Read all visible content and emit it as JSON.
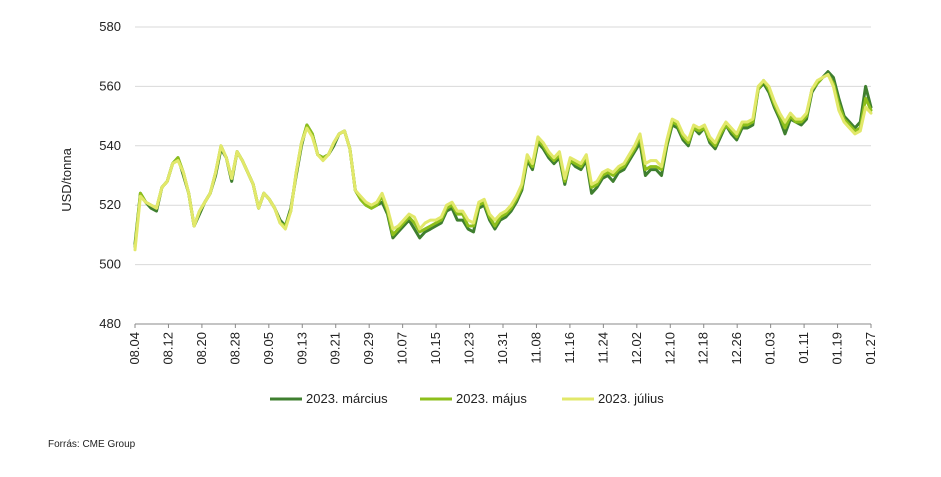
{
  "source": "Forrás: CME Group",
  "chart_data": {
    "type": "line",
    "title": "",
    "xlabel": "",
    "ylabel": "USD/tonna",
    "ylim": [
      480,
      580
    ],
    "yticks": [
      480,
      500,
      520,
      540,
      560,
      580
    ],
    "grid": true,
    "legend_position": "bottom",
    "x_tick_labels": [
      "08.04",
      "08.12",
      "08.20",
      "08.28",
      "09.05",
      "09.13",
      "09.21",
      "09.29",
      "10.07",
      "10.15",
      "10.23",
      "10.31",
      "11.08",
      "11.16",
      "11.24",
      "12.02",
      "12.10",
      "12.18",
      "12.26",
      "01.03",
      "01.11",
      "01.19",
      "01.27"
    ],
    "series": [
      {
        "name": "2023. március",
        "color": "#3f7f2f",
        "values": [
          507,
          524,
          521,
          519,
          518,
          526,
          528,
          534,
          536,
          530,
          524,
          513,
          517,
          521,
          524,
          530,
          539,
          536,
          528,
          538,
          535,
          531,
          527,
          519,
          524,
          522,
          519,
          515,
          513,
          519,
          530,
          540,
          547,
          544,
          537,
          536,
          537,
          540,
          544,
          545,
          539,
          525,
          522,
          520,
          519,
          520,
          521,
          517,
          509,
          511,
          513,
          515,
          512,
          509,
          511,
          512,
          513,
          514,
          518,
          519,
          515,
          515,
          512,
          511,
          519,
          520,
          515,
          512,
          515,
          516,
          518,
          521,
          525,
          535,
          532,
          541,
          539,
          536,
          534,
          536,
          527,
          535,
          533,
          532,
          535,
          524,
          526,
          529,
          530,
          528,
          531,
          532,
          535,
          538,
          541,
          530,
          532,
          532,
          530,
          540,
          547,
          546,
          542,
          540,
          546,
          544,
          546,
          541,
          539,
          543,
          547,
          544,
          542,
          546,
          546,
          547,
          559,
          561,
          558,
          553,
          549,
          544,
          549,
          548,
          547,
          549,
          558,
          561,
          563,
          565,
          563,
          556,
          550,
          548,
          546,
          548,
          560,
          553
        ]
      },
      {
        "name": "2023. május",
        "color": "#8dbf1b",
        "values": [
          506,
          524,
          521,
          520,
          519,
          526,
          528,
          534,
          536,
          531,
          524,
          513,
          518,
          521,
          524,
          531,
          540,
          536,
          529,
          538,
          535,
          531,
          527,
          519,
          524,
          522,
          519,
          514,
          513,
          518,
          531,
          541,
          547,
          544,
          537,
          536,
          537,
          541,
          544,
          545,
          539,
          525,
          522,
          520,
          519,
          520,
          523,
          518,
          510,
          512,
          514,
          516,
          514,
          511,
          512,
          513,
          514,
          515,
          519,
          520,
          517,
          517,
          513,
          513,
          520,
          521,
          516,
          513,
          516,
          517,
          519,
          522,
          526,
          536,
          533,
          542,
          540,
          537,
          535,
          537,
          528,
          535,
          534,
          533,
          536,
          526,
          527,
          530,
          531,
          530,
          532,
          533,
          536,
          539,
          543,
          532,
          533,
          533,
          532,
          541,
          548,
          547,
          543,
          541,
          546,
          545,
          546,
          542,
          540,
          544,
          547,
          545,
          543,
          547,
          547,
          548,
          559,
          562,
          559,
          554,
          550,
          546,
          550,
          548,
          548,
          550,
          559,
          561,
          563,
          564,
          561,
          554,
          549,
          547,
          545,
          546,
          556,
          552
        ]
      },
      {
        "name": "2023. július",
        "color": "#e2e86a",
        "values": [
          505,
          523,
          521,
          520,
          519,
          526,
          528,
          534,
          535,
          531,
          524,
          513,
          518,
          521,
          524,
          531,
          540,
          536,
          529,
          538,
          535,
          531,
          527,
          519,
          524,
          522,
          519,
          514,
          512,
          518,
          531,
          541,
          546,
          543,
          537,
          535,
          537,
          541,
          544,
          545,
          539,
          525,
          523,
          521,
          520,
          521,
          524,
          519,
          512,
          513,
          515,
          517,
          516,
          512,
          514,
          515,
          515,
          516,
          520,
          521,
          518,
          518,
          515,
          514,
          521,
          522,
          517,
          515,
          517,
          518,
          520,
          523,
          527,
          537,
          534,
          543,
          541,
          538,
          536,
          538,
          529,
          536,
          535,
          534,
          537,
          527,
          528,
          531,
          532,
          531,
          533,
          534,
          537,
          540,
          544,
          534,
          535,
          535,
          533,
          542,
          549,
          548,
          544,
          542,
          547,
          546,
          547,
          543,
          541,
          545,
          548,
          546,
          544,
          548,
          548,
          549,
          560,
          562,
          560,
          555,
          551,
          548,
          551,
          549,
          549,
          551,
          559,
          562,
          563,
          564,
          560,
          552,
          548,
          546,
          544,
          545,
          553,
          551
        ]
      }
    ]
  }
}
